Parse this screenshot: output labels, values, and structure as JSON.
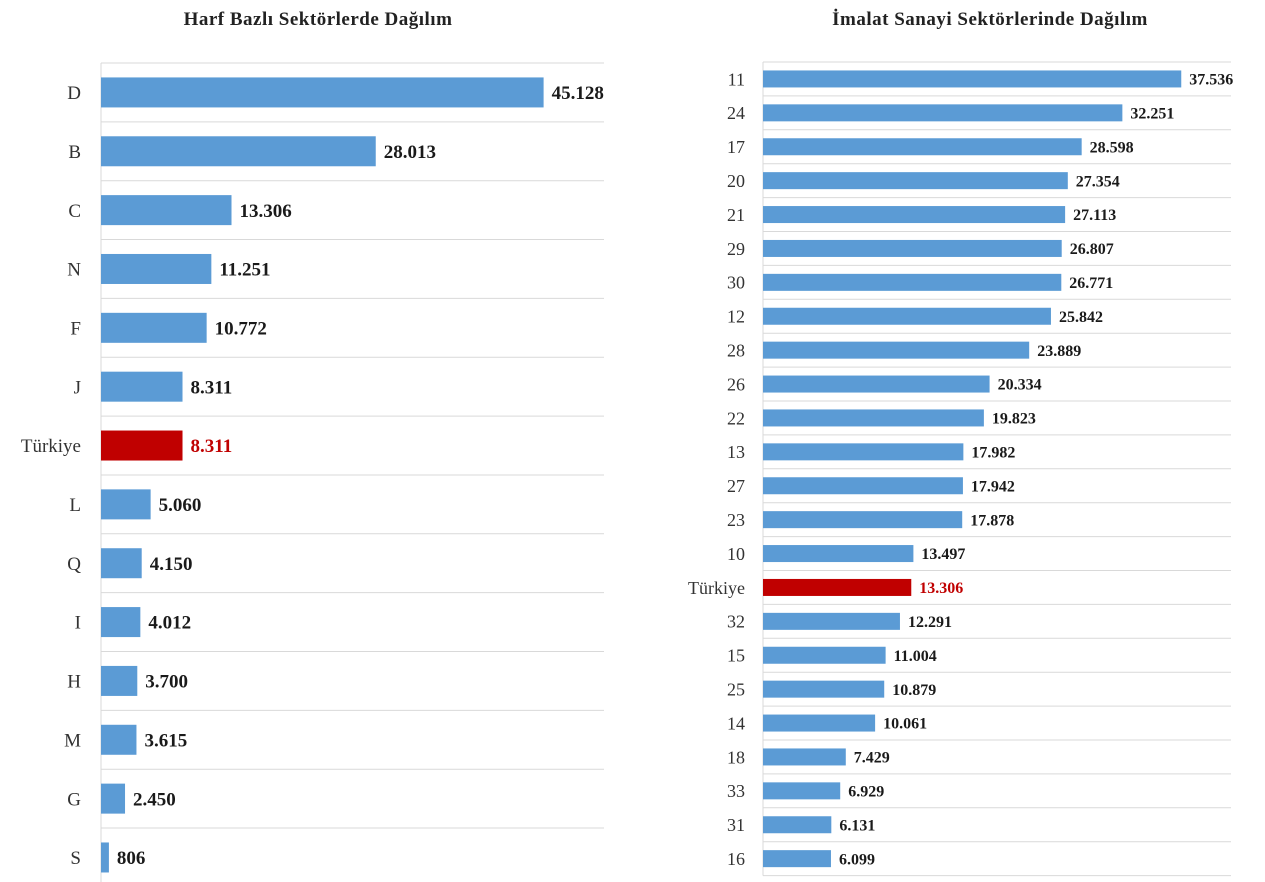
{
  "colors": {
    "bar": "#5b9bd5",
    "highlight": "#c00000",
    "grid": "#d9d9d9",
    "label": "#1a1a1a"
  },
  "chart_data": [
    {
      "type": "bar",
      "orientation": "horizontal",
      "title": "Harf Bazlı Sektörlerde Dağılım",
      "categories": [
        "D",
        "B",
        "C",
        "N",
        "F",
        "J",
        "Türkiye",
        "L",
        "Q",
        "I",
        "H",
        "M",
        "G",
        "S"
      ],
      "values": [
        45128,
        28013,
        13306,
        11251,
        10772,
        8311,
        8311,
        5060,
        4150,
        4012,
        3700,
        3615,
        2450,
        806
      ],
      "value_labels": [
        "45.128",
        "28.013",
        "13.306",
        "11.251",
        "10.772",
        "8.311",
        "8.311",
        "5.060",
        "4.150",
        "4.012",
        "3.700",
        "3.615",
        "2.450",
        "806"
      ],
      "highlight": "Türkiye",
      "xlim": [
        0,
        52000
      ],
      "grid": true
    },
    {
      "type": "bar",
      "orientation": "horizontal",
      "title": "İmalat Sanayi Sektörlerinde Dağılım",
      "categories": [
        "11",
        "24",
        "17",
        "20",
        "21",
        "29",
        "30",
        "12",
        "28",
        "26",
        "22",
        "13",
        "27",
        "23",
        "10",
        "Türkiye",
        "32",
        "15",
        "25",
        "14",
        "18",
        "33",
        "31",
        "16"
      ],
      "values": [
        37536,
        32251,
        28598,
        27354,
        27113,
        26807,
        26771,
        25842,
        23889,
        20334,
        19823,
        17982,
        17942,
        17878,
        13497,
        13306,
        12291,
        11004,
        10879,
        10061,
        7429,
        6929,
        6131,
        6099
      ],
      "value_labels": [
        "37.536",
        "32.251",
        "28.598",
        "27.354",
        "27.113",
        "26.807",
        "26.771",
        "25.842",
        "23.889",
        "20.334",
        "19.823",
        "17.982",
        "17.942",
        "17.878",
        "13.497",
        "13.306",
        "12.291",
        "11.004",
        "10.879",
        "10.061",
        "7.429",
        "6.929",
        "6.131",
        "6.099"
      ],
      "highlight": "Türkiye",
      "xlim": [
        0,
        42000
      ],
      "grid": true
    }
  ]
}
